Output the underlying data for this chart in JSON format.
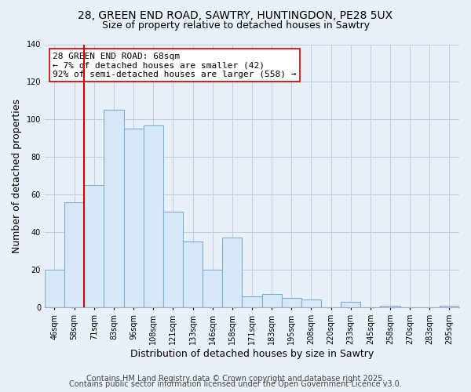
{
  "title": "28, GREEN END ROAD, SAWTRY, HUNTINGDON, PE28 5UX",
  "subtitle": "Size of property relative to detached houses in Sawtry",
  "xlabel": "Distribution of detached houses by size in Sawtry",
  "ylabel": "Number of detached properties",
  "categories": [
    "46sqm",
    "58sqm",
    "71sqm",
    "83sqm",
    "96sqm",
    "108sqm",
    "121sqm",
    "133sqm",
    "146sqm",
    "158sqm",
    "171sqm",
    "183sqm",
    "195sqm",
    "208sqm",
    "220sqm",
    "233sqm",
    "245sqm",
    "258sqm",
    "270sqm",
    "283sqm",
    "295sqm"
  ],
  "values": [
    20,
    56,
    65,
    105,
    95,
    97,
    51,
    35,
    20,
    37,
    6,
    7,
    5,
    4,
    0,
    3,
    0,
    1,
    0,
    0,
    1
  ],
  "bar_color": "#d6e8f7",
  "bar_edge_color": "#7bafd4",
  "vline_x_index": 2,
  "vline_color": "#cc0000",
  "ylim": [
    0,
    140
  ],
  "annotation_text_line1": "28 GREEN END ROAD: 68sqm",
  "annotation_text_line2": "← 7% of detached houses are smaller (42)",
  "annotation_text_line3": "92% of semi-detached houses are larger (558) →",
  "footer_line1": "Contains HM Land Registry data © Crown copyright and database right 2025.",
  "footer_line2": "Contains public sector information licensed under the Open Government Licence v3.0.",
  "background_color": "#e8f0f8",
  "plot_bg_color": "#e8f0f8",
  "grid_color": "#c0cfe0",
  "title_fontsize": 10,
  "subtitle_fontsize": 9,
  "axis_label_fontsize": 9,
  "tick_fontsize": 7,
  "footer_fontsize": 7,
  "annotation_fontsize": 8
}
